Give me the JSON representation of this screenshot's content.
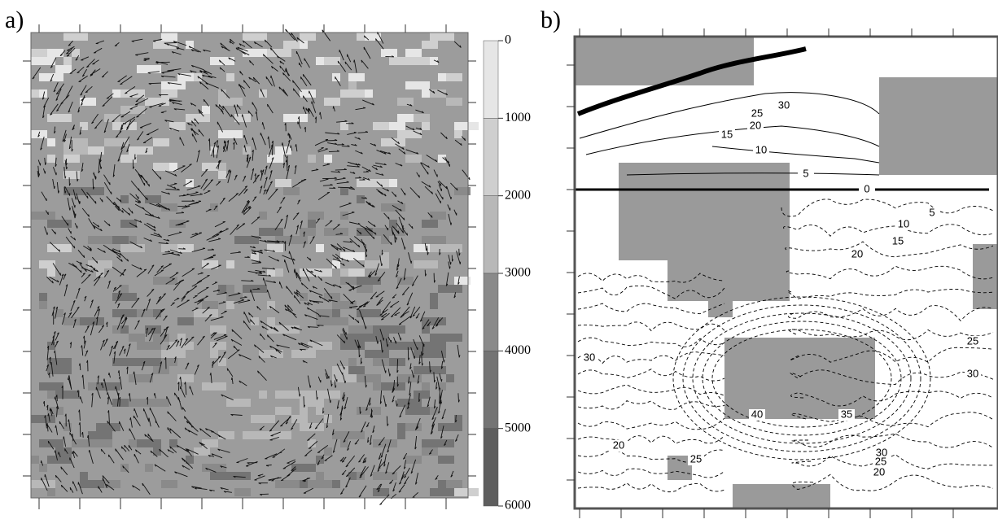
{
  "panels": [
    {
      "label": "a)",
      "colorbar": {
        "ticks": [
          0,
          1000,
          2000,
          3000,
          4000,
          5000,
          6000
        ]
      }
    },
    {
      "label": "b)",
      "contour_labels": [
        "30",
        "25",
        "20",
        "15",
        "10",
        "5",
        "0",
        "5",
        "10",
        "15",
        "20",
        "30",
        "25",
        "30",
        "40",
        "35",
        "20",
        "25",
        "30",
        "25",
        "20"
      ]
    }
  ]
}
